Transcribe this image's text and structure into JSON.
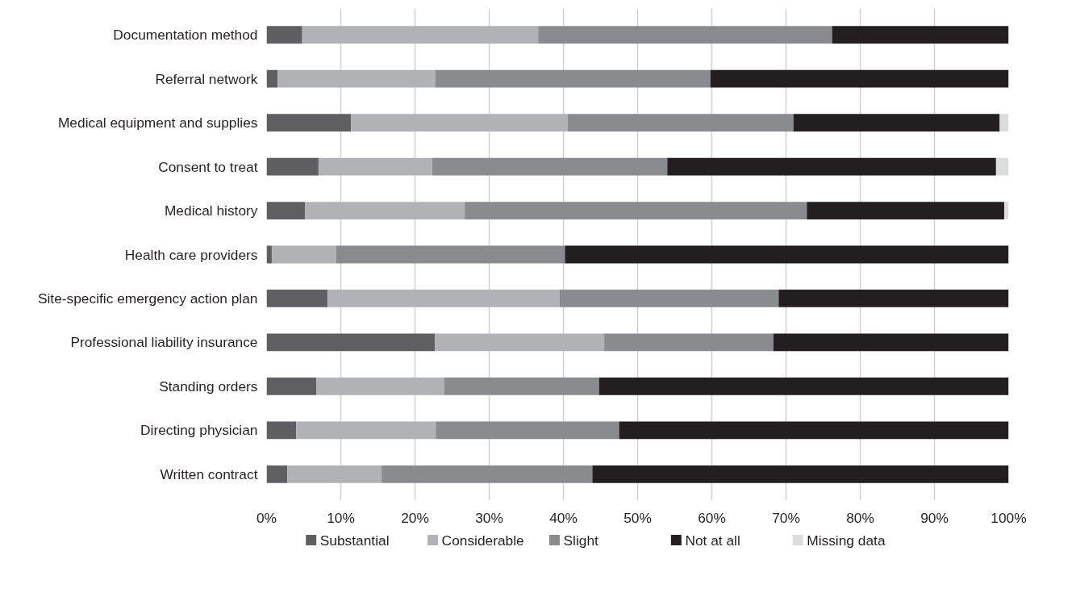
{
  "chart_data": {
    "type": "bar",
    "orientation": "horizontal",
    "stacked": true,
    "categories": [
      "Documentation method",
      "Referral network",
      "Medical equipment and supplies",
      "Consent to treat",
      "Medical history",
      "Health care providers",
      "Site-specific emergency action plan",
      "Professional liability insurance",
      "Standing orders",
      "Directing physician",
      "Written contract"
    ],
    "series": [
      {
        "name": "Substantial",
        "color": "#5f5f62",
        "values": [
          4.8,
          1.5,
          11.4,
          7.0,
          5.2,
          0.7,
          8.2,
          22.7,
          6.7,
          4.0,
          2.8
        ]
      },
      {
        "name": "Considerable",
        "color": "#b1b2b5",
        "values": [
          31.8,
          21.2,
          29.2,
          15.3,
          21.5,
          8.7,
          31.3,
          22.8,
          17.2,
          18.8,
          12.7
        ]
      },
      {
        "name": "Slight",
        "color": "#8a8b8f",
        "values": [
          39.6,
          37.1,
          30.4,
          31.7,
          46.1,
          30.8,
          29.5,
          22.8,
          20.9,
          24.7,
          28.4
        ]
      },
      {
        "name": "Not at all",
        "color": "#231f20",
        "values": [
          23.8,
          40.2,
          27.8,
          44.3,
          26.6,
          59.8,
          31.0,
          31.7,
          55.2,
          52.5,
          56.1
        ]
      },
      {
        "name": "Missing data",
        "color": "#dcdcdc",
        "values": [
          0,
          0,
          1.2,
          1.7,
          0.6,
          0,
          0,
          0,
          0,
          0,
          0
        ]
      }
    ],
    "xlim": [
      0,
      100
    ],
    "xticks": [
      {
        "value": 0,
        "label": "0%"
      },
      {
        "value": 10,
        "label": "10%"
      },
      {
        "value": 20,
        "label": "20%"
      },
      {
        "value": 30,
        "label": "30%"
      },
      {
        "value": 40,
        "label": "40%"
      },
      {
        "value": 50,
        "label": "50%"
      },
      {
        "value": 60,
        "label": "60%"
      },
      {
        "value": 70,
        "label": "70%"
      },
      {
        "value": 80,
        "label": "80%"
      },
      {
        "value": 90,
        "label": "90%"
      },
      {
        "value": 100,
        "label": "100%"
      }
    ],
    "grid": "x",
    "legend": "bottom"
  }
}
